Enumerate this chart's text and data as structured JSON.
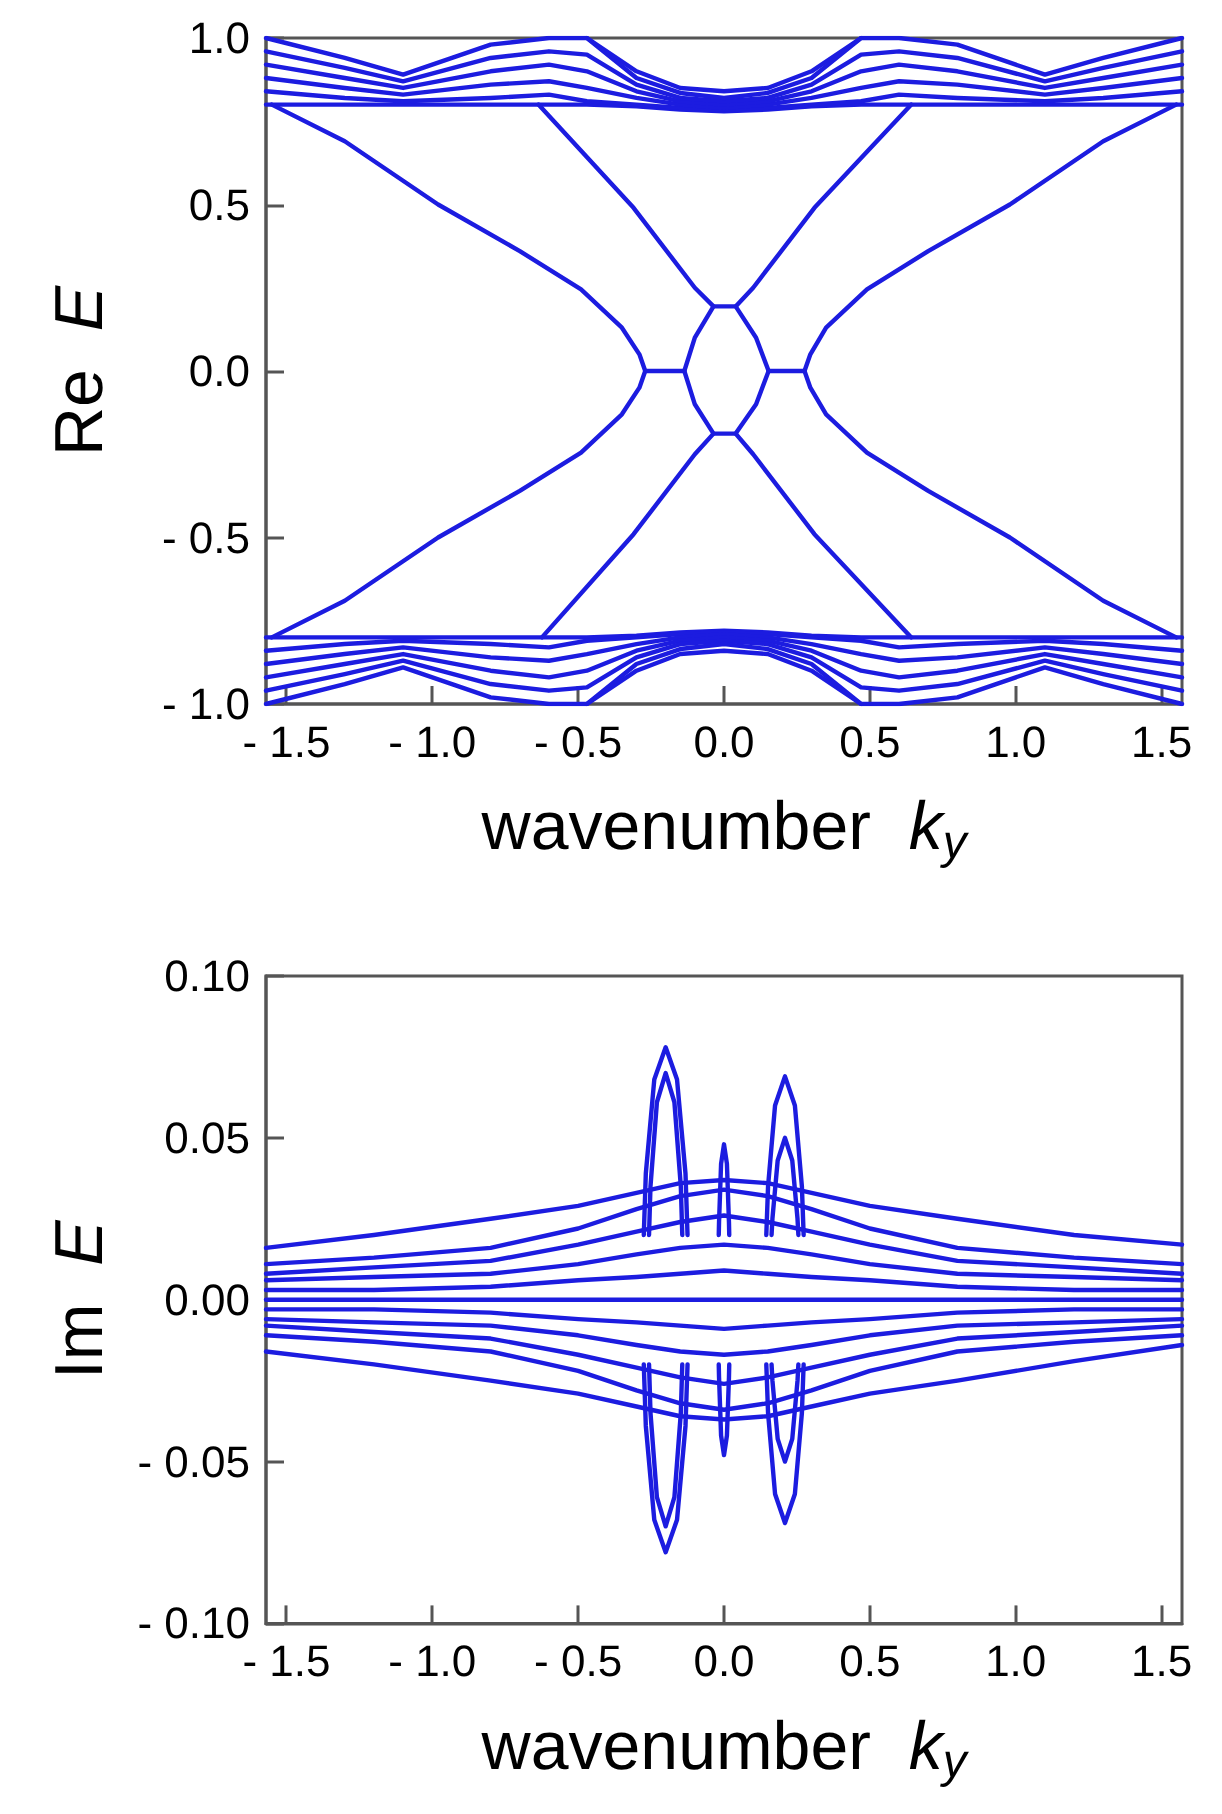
{
  "chart_data": [
    {
      "type": "line",
      "ylabel": "Re E",
      "xlabel": "wavenumber k$_{y}$",
      "xlim": [
        -1.57,
        1.57
      ],
      "ylim": [
        -1,
        1
      ],
      "xticks": [
        {
          "value": -1.5,
          "label": "- 1.5"
        },
        {
          "value": -1,
          "label": "- 1.0"
        },
        {
          "value": -0.5,
          "label": "- 0.5"
        },
        {
          "value": 0,
          "label": "0.0"
        },
        {
          "value": 0.5,
          "label": "0.5"
        },
        {
          "value": 1,
          "label": "1.0"
        },
        {
          "value": 1.5,
          "label": "1.5"
        }
      ],
      "yticks": [
        {
          "value": -1,
          "label": "- 1.0"
        },
        {
          "value": -0.5,
          "label": "- 0.5"
        },
        {
          "value": 0,
          "label": "0.0"
        },
        {
          "value": 0.5,
          "label": "0.5"
        },
        {
          "value": 1,
          "label": "1.0"
        }
      ],
      "grid": false,
      "marker": "none",
      "line_style": "solid",
      "x": [
        -1.57,
        -1.3,
        -1.1,
        -0.8,
        -0.6,
        -0.47,
        -0.3,
        -0.15,
        0,
        0.15,
        0.3,
        0.47,
        0.6,
        0.8,
        1.1,
        1.3,
        1.57
      ],
      "series": [
        {
          "color": "#1c1ce0",
          "values": [
            0.8,
            0.8,
            0.8,
            0.8,
            0.8,
            0.8,
            0.795,
            0.785,
            0.78,
            0.785,
            0.795,
            0.8,
            0.8,
            0.8,
            0.8,
            0.8,
            0.8
          ]
        },
        {
          "color": "#1c1ce0",
          "values": [
            null,
            null,
            null,
            null,
            null,
            1.0,
            0.9,
            0.85,
            0.84,
            0.85,
            0.9,
            1.0,
            null,
            null,
            null,
            null,
            null
          ]
        },
        {
          "color": "#1c1ce0",
          "values": [
            0.84,
            0.82,
            0.81,
            0.82,
            0.83,
            0.81,
            0.8,
            0.79,
            0.785,
            0.79,
            0.8,
            0.81,
            0.83,
            0.82,
            0.81,
            0.82,
            0.84
          ]
        },
        {
          "color": "#1c1ce0",
          "values": [
            0.88,
            0.85,
            0.83,
            0.86,
            0.87,
            0.85,
            0.82,
            0.8,
            0.79,
            0.8,
            0.82,
            0.85,
            0.87,
            0.86,
            0.83,
            0.85,
            0.88
          ]
        },
        {
          "color": "#1c1ce0",
          "values": [
            0.92,
            0.88,
            0.85,
            0.9,
            0.92,
            0.9,
            0.84,
            0.81,
            0.8,
            0.81,
            0.84,
            0.9,
            0.92,
            0.9,
            0.85,
            0.88,
            0.92
          ]
        },
        {
          "color": "#1c1ce0",
          "values": [
            0.96,
            0.91,
            0.87,
            0.94,
            0.96,
            0.95,
            0.86,
            0.82,
            0.81,
            0.82,
            0.86,
            0.95,
            0.96,
            0.94,
            0.87,
            0.91,
            0.96
          ]
        },
        {
          "color": "#1c1ce0",
          "values": [
            1.0,
            0.94,
            0.89,
            0.98,
            1.0,
            1.0,
            0.88,
            0.835,
            0.82,
            0.835,
            0.88,
            1.0,
            1.0,
            0.98,
            0.89,
            0.94,
            1.0
          ]
        },
        {
          "color": "#1c1ce0",
          "values": [
            -0.8,
            -0.8,
            -0.8,
            -0.8,
            -0.8,
            -0.8,
            -0.795,
            -0.785,
            -0.78,
            -0.785,
            -0.795,
            -0.8,
            -0.8,
            -0.8,
            -0.8,
            -0.8,
            -0.8
          ]
        },
        {
          "color": "#1c1ce0",
          "values": [
            null,
            null,
            null,
            null,
            null,
            -1.0,
            -0.9,
            -0.85,
            -0.84,
            -0.85,
            -0.9,
            -1.0,
            null,
            null,
            null,
            null,
            null
          ]
        },
        {
          "color": "#1c1ce0",
          "values": [
            -0.84,
            -0.82,
            -0.81,
            -0.82,
            -0.83,
            -0.81,
            -0.8,
            -0.79,
            -0.785,
            -0.79,
            -0.8,
            -0.81,
            -0.83,
            -0.82,
            -0.81,
            -0.82,
            -0.84
          ]
        },
        {
          "color": "#1c1ce0",
          "values": [
            -0.88,
            -0.85,
            -0.83,
            -0.86,
            -0.87,
            -0.85,
            -0.82,
            -0.8,
            -0.79,
            -0.8,
            -0.82,
            -0.85,
            -0.87,
            -0.86,
            -0.83,
            -0.85,
            -0.88
          ]
        },
        {
          "color": "#1c1ce0",
          "values": [
            -0.92,
            -0.88,
            -0.85,
            -0.9,
            -0.92,
            -0.9,
            -0.84,
            -0.81,
            -0.8,
            -0.81,
            -0.84,
            -0.9,
            -0.92,
            -0.9,
            -0.85,
            -0.88,
            -0.92
          ]
        },
        {
          "color": "#1c1ce0",
          "values": [
            -0.96,
            -0.91,
            -0.87,
            -0.94,
            -0.96,
            -0.95,
            -0.86,
            -0.82,
            -0.81,
            -0.82,
            -0.86,
            -0.95,
            -0.96,
            -0.94,
            -0.87,
            -0.91,
            -0.96
          ]
        },
        {
          "color": "#1c1ce0",
          "values": [
            -1.0,
            -0.94,
            -0.89,
            -0.98,
            -1.0,
            -1.0,
            -0.88,
            -0.835,
            -0.82,
            -0.835,
            -0.88,
            -1.0,
            -1.0,
            -0.98,
            -0.89,
            -0.94,
            -1.0
          ]
        },
        {
          "color": "#1c1ce0",
          "x": [
            -1.55,
            -1.3,
            -0.98,
            -0.7,
            -0.49,
            -0.35,
            -0.29,
            -0.27
          ],
          "values": [
            0.8,
            0.69,
            0.5,
            0.36,
            0.245,
            0.13,
            0.05,
            0
          ]
        },
        {
          "color": "#1c1ce0",
          "x": [
            -1.55,
            -1.3,
            -0.98,
            -0.7,
            -0.49,
            -0.35,
            -0.29,
            -0.27
          ],
          "values": [
            -0.8,
            -0.69,
            -0.5,
            -0.36,
            -0.245,
            -0.13,
            -0.05,
            0
          ]
        },
        {
          "color": "#1c1ce0",
          "x": [
            0.276,
            0.296,
            0.35,
            0.49,
            0.7,
            0.98,
            1.3,
            1.55
          ],
          "values": [
            0,
            0.05,
            0.13,
            0.245,
            0.36,
            0.5,
            0.69,
            0.8
          ]
        },
        {
          "color": "#1c1ce0",
          "x": [
            0.276,
            0.296,
            0.35,
            0.49,
            0.7,
            0.98,
            1.3,
            1.55
          ],
          "values": [
            0,
            -0.05,
            -0.13,
            -0.245,
            -0.36,
            -0.5,
            -0.69,
            -0.8
          ]
        },
        {
          "color": "#1c1ce0",
          "x": [
            -0.27,
            -0.136
          ],
          "values": [
            0,
            0
          ]
        },
        {
          "color": "#1c1ce0",
          "x": [
            -0.136,
            -0.1,
            -0.036,
            0.04,
            0.11,
            0.153
          ],
          "values": [
            0,
            0.1,
            0.194,
            0.194,
            0.1,
            0
          ]
        },
        {
          "color": "#1c1ce0",
          "x": [
            -0.136,
            -0.1,
            -0.036,
            0.04,
            0.11,
            0.153
          ],
          "values": [
            0,
            -0.1,
            -0.188,
            -0.188,
            -0.1,
            0
          ]
        },
        {
          "color": "#1c1ce0",
          "x": [
            0.153,
            0.276
          ],
          "values": [
            0,
            0
          ]
        },
        {
          "color": "#1c1ce0",
          "x": [
            -0.636,
            -0.31,
            -0.1,
            -0.036
          ],
          "values": [
            0.8,
            0.49,
            0.25,
            0.194
          ]
        },
        {
          "color": "#1c1ce0",
          "x": [
            0.04,
            0.1,
            0.31,
            0.642
          ],
          "values": [
            0.194,
            0.25,
            0.49,
            0.8
          ]
        },
        {
          "color": "#1c1ce0",
          "x": [
            -0.624,
            -0.31,
            -0.1,
            -0.036
          ],
          "values": [
            -0.8,
            -0.49,
            -0.25,
            -0.188
          ]
        },
        {
          "color": "#1c1ce0",
          "x": [
            0.04,
            0.1,
            0.31,
            0.642
          ],
          "values": [
            -0.188,
            -0.25,
            -0.49,
            -0.8
          ]
        }
      ]
    },
    {
      "type": "line",
      "ylabel": "Im E",
      "xlabel": "wavenumber k$_{y}$",
      "xlim": [
        -1.57,
        1.57
      ],
      "ylim": [
        -0.1,
        0.1
      ],
      "xticks": [
        {
          "value": -1.5,
          "label": "- 1.5"
        },
        {
          "value": -1,
          "label": "- 1.0"
        },
        {
          "value": -0.5,
          "label": "- 0.5"
        },
        {
          "value": 0,
          "label": "0.0"
        },
        {
          "value": 0.5,
          "label": "0.5"
        },
        {
          "value": 1,
          "label": "1.0"
        },
        {
          "value": 1.5,
          "label": "1.5"
        }
      ],
      "yticks": [
        {
          "value": -0.1,
          "label": "- 0.10"
        },
        {
          "value": -0.05,
          "label": "- 0.05"
        },
        {
          "value": 0,
          "label": "0.00"
        },
        {
          "value": 0.05,
          "label": "0.05"
        },
        {
          "value": 0.1,
          "label": "0.10"
        }
      ],
      "grid": false,
      "marker": "none",
      "line_style": "solid",
      "x": [
        -1.57,
        -1.2,
        -0.8,
        -0.5,
        -0.3,
        -0.15,
        0,
        0.15,
        0.3,
        0.5,
        0.8,
        1.2,
        1.57
      ],
      "series": [
        {
          "color": "#1c1ce0",
          "values": [
            0.016,
            0.02,
            0.025,
            0.029,
            0.033,
            0.036,
            0.037,
            0.036,
            0.033,
            0.029,
            0.025,
            0.02,
            0.017
          ]
        },
        {
          "color": "#1c1ce0",
          "values": [
            -0.016,
            -0.02,
            -0.025,
            -0.029,
            -0.033,
            -0.036,
            -0.037,
            -0.036,
            -0.033,
            -0.029,
            -0.025,
            -0.019,
            -0.014
          ]
        },
        {
          "color": "#1c1ce0",
          "values": [
            0.011,
            0.013,
            0.016,
            0.022,
            0.028,
            0.032,
            0.034,
            0.032,
            0.028,
            0.022,
            0.016,
            0.013,
            0.011
          ]
        },
        {
          "color": "#1c1ce0",
          "values": [
            0.008,
            0.01,
            0.012,
            0.017,
            0.021,
            0.024,
            0.026,
            0.024,
            0.021,
            0.017,
            0.012,
            0.01,
            0.008
          ]
        },
        {
          "color": "#1c1ce0",
          "values": [
            0.006,
            0.007,
            0.008,
            0.011,
            0.014,
            0.016,
            0.017,
            0.016,
            0.014,
            0.011,
            0.008,
            0.007,
            0.006
          ]
        },
        {
          "color": "#1c1ce0",
          "values": [
            0.003,
            0.003,
            0.004,
            0.006,
            0.007,
            0.008,
            0.009,
            0.008,
            0.007,
            0.006,
            0.004,
            0.003,
            0.003
          ]
        },
        {
          "color": "#1c1ce0",
          "values": [
            0,
            0,
            0,
            0,
            0,
            0,
            0,
            0,
            0,
            0,
            0,
            0,
            0
          ]
        },
        {
          "color": "#1c1ce0",
          "values": [
            -0.003,
            -0.003,
            -0.004,
            -0.006,
            -0.007,
            -0.008,
            -0.009,
            -0.008,
            -0.007,
            -0.006,
            -0.004,
            -0.003,
            -0.003
          ]
        },
        {
          "color": "#1c1ce0",
          "values": [
            -0.006,
            -0.007,
            -0.008,
            -0.011,
            -0.014,
            -0.016,
            -0.017,
            -0.016,
            -0.014,
            -0.011,
            -0.008,
            -0.007,
            -0.006
          ]
        },
        {
          "color": "#1c1ce0",
          "values": [
            -0.008,
            -0.01,
            -0.012,
            -0.017,
            -0.021,
            -0.024,
            -0.026,
            -0.024,
            -0.021,
            -0.017,
            -0.012,
            -0.01,
            -0.008
          ]
        },
        {
          "color": "#1c1ce0",
          "values": [
            -0.011,
            -0.013,
            -0.016,
            -0.022,
            -0.028,
            -0.032,
            -0.034,
            -0.032,
            -0.028,
            -0.022,
            -0.016,
            -0.013,
            -0.011
          ]
        },
        {
          "color": "#1c1ce0",
          "x": [
            -0.275,
            -0.268,
            -0.239,
            -0.2,
            -0.161,
            -0.132,
            -0.125
          ],
          "values": [
            0.02,
            0.039,
            0.068,
            0.078,
            0.068,
            0.039,
            0.02
          ]
        },
        {
          "color": "#1c1ce0",
          "x": [
            -0.275,
            -0.268,
            -0.239,
            -0.2,
            -0.161,
            -0.132,
            -0.125
          ],
          "values": [
            -0.02,
            -0.039,
            -0.068,
            -0.078,
            -0.068,
            -0.039,
            -0.02
          ]
        },
        {
          "color": "#1c1ce0",
          "x": [
            -0.257,
            -0.252,
            -0.23,
            -0.2,
            -0.17,
            -0.148,
            -0.143
          ],
          "values": [
            0.02,
            0.035,
            0.061,
            0.07,
            0.061,
            0.035,
            0.02
          ]
        },
        {
          "color": "#1c1ce0",
          "x": [
            -0.257,
            -0.252,
            -0.23,
            -0.2,
            -0.17,
            -0.148,
            -0.143
          ],
          "values": [
            -0.02,
            -0.035,
            -0.061,
            -0.07,
            -0.061,
            -0.035,
            -0.02
          ]
        },
        {
          "color": "#1c1ce0",
          "x": [
            0.145,
            0.151,
            0.175,
            0.209,
            0.243,
            0.267,
            0.273
          ],
          "values": [
            0.02,
            0.035,
            0.06,
            0.069,
            0.06,
            0.035,
            0.02
          ]
        },
        {
          "color": "#1c1ce0",
          "x": [
            0.145,
            0.151,
            0.175,
            0.209,
            0.243,
            0.267,
            0.273
          ],
          "values": [
            -0.02,
            -0.035,
            -0.06,
            -0.069,
            -0.06,
            -0.035,
            -0.02
          ]
        },
        {
          "color": "#1c1ce0",
          "x": [
            0.163,
            0.166,
            0.184,
            0.209,
            0.234,
            0.252,
            0.255
          ],
          "values": [
            0.02,
            0.025,
            0.043,
            0.05,
            0.043,
            0.025,
            0.02
          ]
        },
        {
          "color": "#1c1ce0",
          "x": [
            0.163,
            0.166,
            0.184,
            0.209,
            0.234,
            0.252,
            0.255
          ],
          "values": [
            -0.02,
            -0.025,
            -0.043,
            -0.05,
            -0.043,
            -0.025,
            -0.02
          ]
        },
        {
          "color": "#1c1ce0",
          "x": [
            -0.018,
            -0.017,
            -0.01,
            0,
            0.01,
            0.017,
            0.018
          ],
          "values": [
            0.02,
            0.024,
            0.042,
            0.048,
            0.042,
            0.024,
            0.02
          ]
        },
        {
          "color": "#1c1ce0",
          "x": [
            -0.018,
            -0.017,
            -0.01,
            0,
            0.01,
            0.017,
            0.018
          ],
          "values": [
            -0.02,
            -0.024,
            -0.042,
            -0.048,
            -0.042,
            -0.024,
            -0.02
          ]
        }
      ]
    }
  ]
}
